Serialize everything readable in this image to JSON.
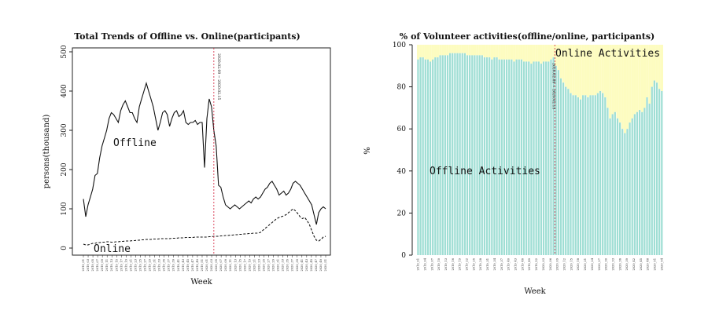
{
  "chart_data": [
    {
      "type": "line",
      "title": "Total Trends of Offline vs. Online(participants)",
      "xlabel": "Week",
      "ylabel": "persons(thousand)",
      "ylim": [
        0,
        500
      ],
      "yticks": [
        0,
        100,
        200,
        300,
        400,
        500
      ],
      "x_tick_labels": [
        "2019_01",
        "2019_03",
        "2019_05",
        "2019_07",
        "2019_09",
        "2019_11",
        "2019_13",
        "2019_15",
        "2019_17",
        "2019_19",
        "2019_21",
        "2019_23",
        "2019_25",
        "2019_27",
        "2019_29",
        "2019_31",
        "2019_33",
        "2019_35",
        "2019_37",
        "2019_39",
        "2019_41",
        "2019_43",
        "2019_45",
        "2019_47",
        "2019_49",
        "2019_51",
        "2020_01",
        "2020_03",
        "2020_05",
        "2020_07",
        "2020_09",
        "2020_11",
        "2020_13",
        "2020_15",
        "2020_17",
        "2020_19",
        "2020_21",
        "2020_23",
        "2020_25",
        "2020_27",
        "2020_29",
        "2020_31",
        "2020_33",
        "2020_35",
        "2020_37",
        "2020_39",
        "2020_41",
        "2020_43",
        "2020_45",
        "2020_47",
        "2020_49",
        "2020_51"
      ],
      "vline_label": "2020.02.09 ~ 2020.02.15",
      "vline_index": 56,
      "series": [
        {
          "name": "Offline",
          "style": "solid",
          "values": [
            125,
            80,
            110,
            130,
            150,
            185,
            190,
            230,
            260,
            280,
            300,
            330,
            345,
            340,
            330,
            320,
            350,
            365,
            375,
            360,
            345,
            345,
            330,
            320,
            360,
            380,
            400,
            420,
            400,
            380,
            360,
            330,
            300,
            320,
            345,
            350,
            340,
            310,
            330,
            345,
            350,
            335,
            340,
            350,
            320,
            315,
            320,
            320,
            325,
            315,
            320,
            320,
            205,
            330,
            380,
            360,
            300,
            260,
            160,
            155,
            130,
            110,
            105,
            100,
            105,
            110,
            105,
            100,
            105,
            110,
            115,
            120,
            115,
            125,
            130,
            125,
            130,
            140,
            150,
            155,
            165,
            170,
            160,
            150,
            135,
            140,
            145,
            135,
            140,
            150,
            165,
            170,
            165,
            160,
            150,
            140,
            130,
            120,
            110,
            85,
            60,
            90,
            100,
            105,
            100
          ]
        },
        {
          "name": "Online",
          "style": "dashed",
          "values": [
            10,
            8,
            8,
            10,
            12,
            12,
            14,
            14,
            15,
            15,
            16,
            16,
            15,
            15,
            16,
            16,
            17,
            17,
            18,
            18,
            18,
            19,
            19,
            20,
            20,
            21,
            21,
            22,
            22,
            22,
            23,
            23,
            23,
            24,
            24,
            24,
            24,
            24,
            25,
            25,
            25,
            26,
            26,
            26,
            27,
            27,
            27,
            27,
            28,
            28,
            28,
            28,
            28,
            28,
            29,
            29,
            30,
            30,
            30,
            31,
            31,
            32,
            32,
            33,
            33,
            34,
            34,
            35,
            35,
            36,
            36,
            37,
            37,
            38,
            38,
            38,
            40,
            45,
            50,
            55,
            60,
            65,
            70,
            75,
            78,
            80,
            82,
            85,
            90,
            95,
            100,
            95,
            88,
            80,
            75,
            78,
            70,
            60,
            45,
            30,
            20,
            18,
            22,
            28,
            30
          ]
        }
      ],
      "annotations": [
        "Offline",
        "Online"
      ],
      "grid": false
    },
    {
      "type": "bar",
      "stacked": true,
      "title": "% of Volunteer activities(offline/online, participants)",
      "xlabel": "Week",
      "ylabel": "%",
      "ylim": [
        0,
        100
      ],
      "yticks": [
        0,
        20,
        40,
        60,
        80,
        100
      ],
      "x_tick_labels": [
        "2019_01",
        "2019_04",
        "2019_07",
        "2019_10",
        "2019_13",
        "2019_16",
        "2019_19",
        "2019_22",
        "2019_25",
        "2019_28",
        "2019_31",
        "2019_34",
        "2019_37",
        "2019_40",
        "2019_43",
        "2019_46",
        "2019_49",
        "2019_52",
        "2020_03",
        "2020_06",
        "2020_09",
        "2020_12",
        "2020_15",
        "2020_18",
        "2020_21",
        "2020_24",
        "2020_27",
        "2020_30",
        "2020_33",
        "2020_36",
        "2020_39",
        "2020_42",
        "2020_45",
        "2020_48",
        "2020_51",
        "2020_54"
      ],
      "vline_label": "2020.02.09 ~ 2020.02.15",
      "vline_index": 56,
      "series": [
        {
          "name": "Offline Activities",
          "color": "#9fded4",
          "values": [
            93,
            94,
            94,
            93,
            93,
            92,
            93,
            94,
            94,
            95,
            95,
            95,
            95,
            96,
            96,
            96,
            96,
            96,
            96,
            96,
            95,
            95,
            95,
            95,
            95,
            95,
            95,
            94,
            94,
            94,
            93,
            94,
            94,
            93,
            93,
            93,
            93,
            93,
            93,
            92,
            93,
            93,
            93,
            92,
            92,
            92,
            91,
            92,
            92,
            92,
            91,
            92,
            92,
            92,
            93,
            94,
            90,
            88,
            84,
            82,
            80,
            79,
            77,
            76,
            76,
            75,
            74,
            76,
            76,
            75,
            76,
            76,
            76,
            77,
            78,
            77,
            75,
            70,
            65,
            67,
            68,
            65,
            63,
            60,
            58,
            60,
            63,
            65,
            67,
            68,
            69,
            68,
            70,
            75,
            72,
            80,
            83,
            82,
            79,
            78
          ]
        },
        {
          "name": "Online Activities",
          "color": "#fdfcc0"
        }
      ],
      "annotations": [
        "Offline Activities",
        "Online Activities"
      ],
      "grid": false
    }
  ]
}
